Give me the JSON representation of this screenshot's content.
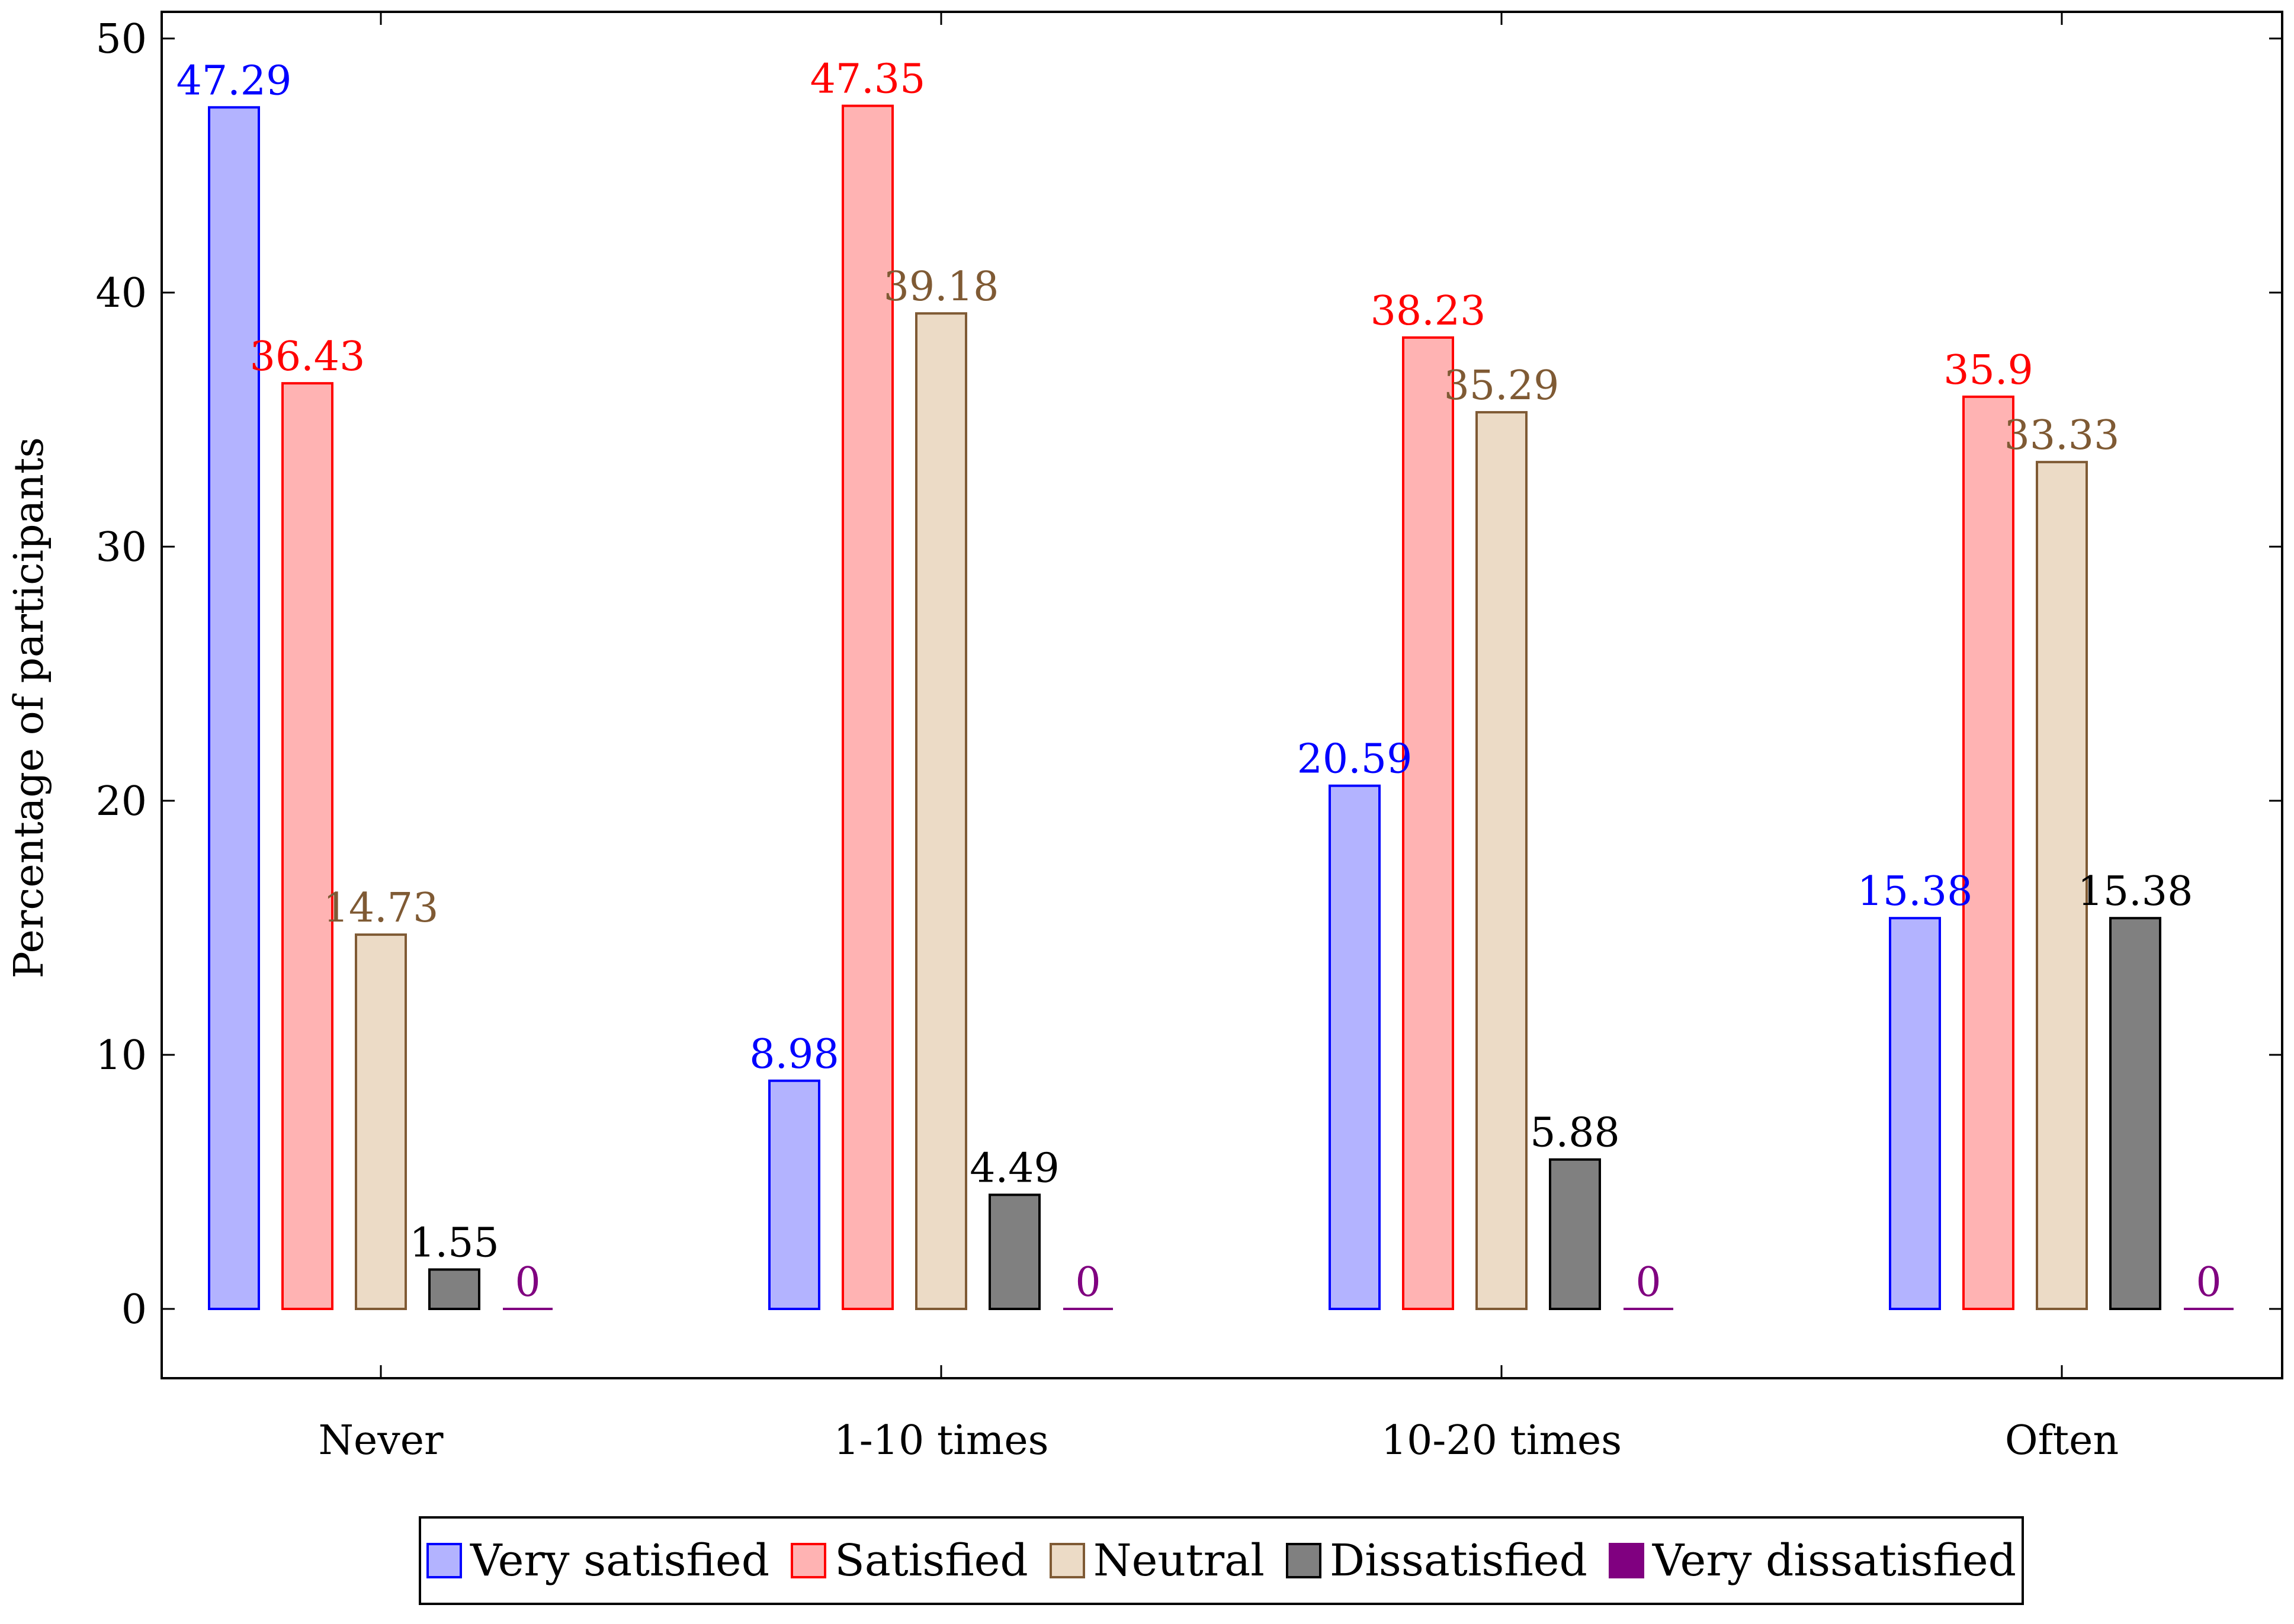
{
  "chart_data": {
    "type": "bar",
    "title": "",
    "xlabel": "",
    "ylabel": "Percentage of participants",
    "ylim": [
      -2.8,
      50
    ],
    "yticks": [
      0,
      10,
      20,
      30,
      40,
      50
    ],
    "categories": [
      "Never",
      "1-10 times",
      "10-20 times",
      "Often"
    ],
    "series": [
      {
        "name": "Very satisfied",
        "fill": "#b3b3ff",
        "stroke": "#0000ff",
        "label_color": "#0000ff",
        "values": [
          47.29,
          8.98,
          20.59,
          15.38
        ],
        "labels": [
          "47.29",
          "8.98",
          "20.59",
          "15.38"
        ]
      },
      {
        "name": "Satisfied",
        "fill": "#ffb3b3",
        "stroke": "#ff0000",
        "label_color": "#ff0000",
        "values": [
          36.43,
          47.35,
          38.23,
          35.9
        ],
        "labels": [
          "36.43",
          "47.35",
          "38.23",
          "35.9"
        ]
      },
      {
        "name": "Neutral",
        "fill": "#ecdbc6",
        "stroke": "#7f5a34",
        "label_color": "#7f5a34",
        "values": [
          14.73,
          39.18,
          35.29,
          33.33
        ],
        "labels": [
          "14.73",
          "39.18",
          "35.29",
          "33.33"
        ]
      },
      {
        "name": "Dissatisfied",
        "fill": "#808080",
        "stroke": "#000000",
        "label_color": "#000000",
        "values": [
          1.55,
          4.49,
          5.88,
          15.38
        ],
        "labels": [
          "1.55",
          "4.49",
          "5.88",
          "15.38"
        ]
      },
      {
        "name": "Very dissatisfied",
        "fill": "#800080",
        "stroke": "#800080",
        "label_color": "#800080",
        "values": [
          0,
          0,
          0,
          0
        ],
        "labels": [
          "0",
          "0",
          "0",
          "0"
        ]
      }
    ],
    "grid": false,
    "legend_position": "bottom-center"
  }
}
